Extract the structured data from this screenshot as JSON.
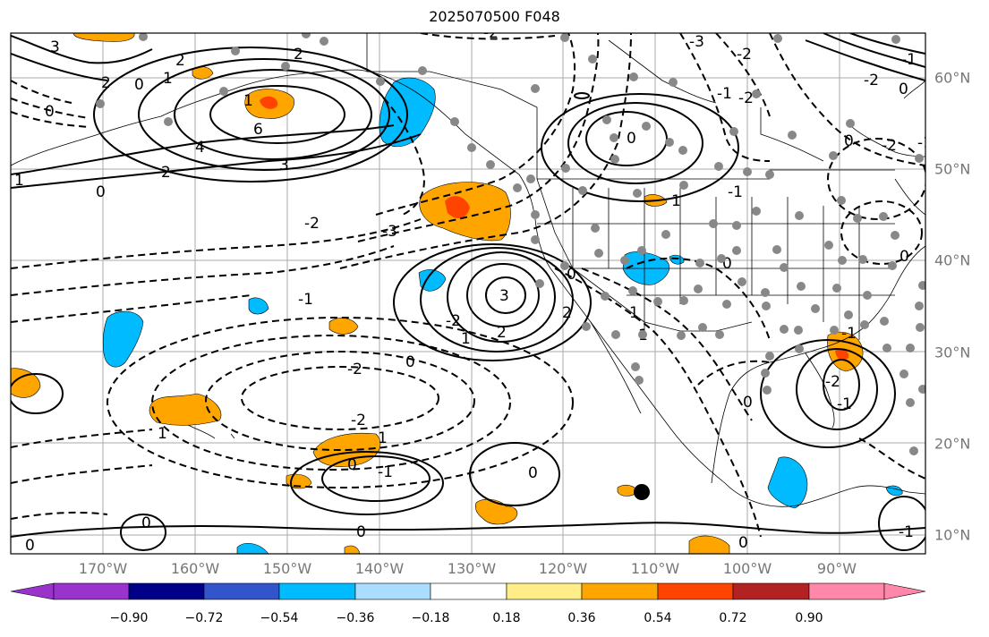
{
  "title": "2025070500 F048",
  "lon_labels": [
    "170°W",
    "160°W",
    "150°W",
    "140°W",
    "130°W",
    "120°W",
    "110°W",
    "100°W",
    "90°W"
  ],
  "lat_labels": [
    "60°N",
    "50°N",
    "40°N",
    "30°N",
    "20°N",
    "10°N"
  ],
  "colorbar": {
    "ticks": [
      "−0.90",
      "−0.72",
      "−0.54",
      "−0.36",
      "−0.18",
      "0.18",
      "0.36",
      "0.54",
      "0.72",
      "0.90"
    ],
    "colors": [
      "#9933cc",
      "#000088",
      "#3355cc",
      "#00bbff",
      "#aaddff",
      "#ffffff",
      "#ffee88",
      "#ffa500",
      "#ff4400",
      "#b22222",
      "#ff88aa"
    ]
  },
  "contour_labels": [
    "3",
    "2",
    "0",
    "2",
    "1",
    "6",
    "4",
    "3",
    "2",
    "0",
    "-3",
    "-2",
    "-1",
    "-2",
    "0",
    "-1",
    "-2",
    "2",
    "1",
    "0",
    "3",
    "-2",
    "1",
    "0",
    "-2",
    "1",
    "0",
    "-3",
    "-2",
    "-1",
    "-2",
    "0",
    "-2",
    "0",
    "-1",
    "1",
    "0",
    "2",
    "1",
    "0",
    "1",
    "0",
    "-1",
    "-2",
    "-1",
    "0",
    "0",
    "-2",
    "-1",
    "1",
    "0",
    "0",
    "-1",
    "0",
    "2",
    "1",
    "0",
    "-1"
  ],
  "marker": "observation-point"
}
